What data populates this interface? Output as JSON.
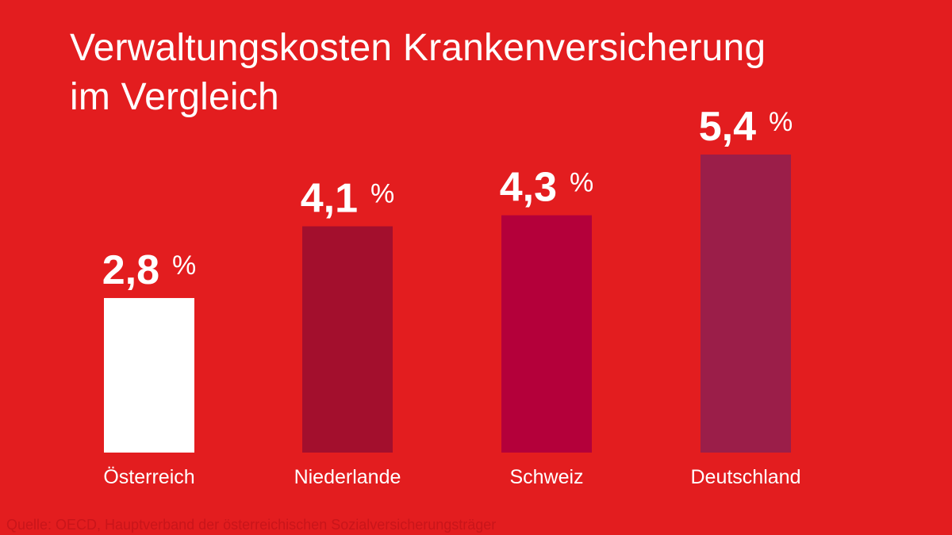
{
  "title": {
    "line1": "Verwaltungskosten Krankenversicherung",
    "line2": "im Vergleich"
  },
  "source": "Quelle: OECD, Hauptverband der österreichischen Sozialversicherungsträger",
  "colors": {
    "background": "#e31d1f",
    "text": "#ffffff",
    "source_text": "#c9151a"
  },
  "chart_data": {
    "type": "bar",
    "title": "Verwaltungskosten Krankenversicherung im Vergleich",
    "xlabel": "",
    "ylabel": "",
    "ylim": [
      0,
      5.4
    ],
    "grid": false,
    "legend": "none",
    "unit": "%",
    "categories": [
      "Österreich",
      "Niederlande",
      "Schweiz",
      "Deutschland"
    ],
    "values": [
      2.8,
      4.1,
      4.3,
      5.4
    ],
    "value_labels": [
      "2,8",
      "4,1",
      "4,3",
      "5,4"
    ],
    "bar_colors": [
      "#ffffff",
      "#a30f2d",
      "#b4003a",
      "#9b1e49"
    ]
  }
}
